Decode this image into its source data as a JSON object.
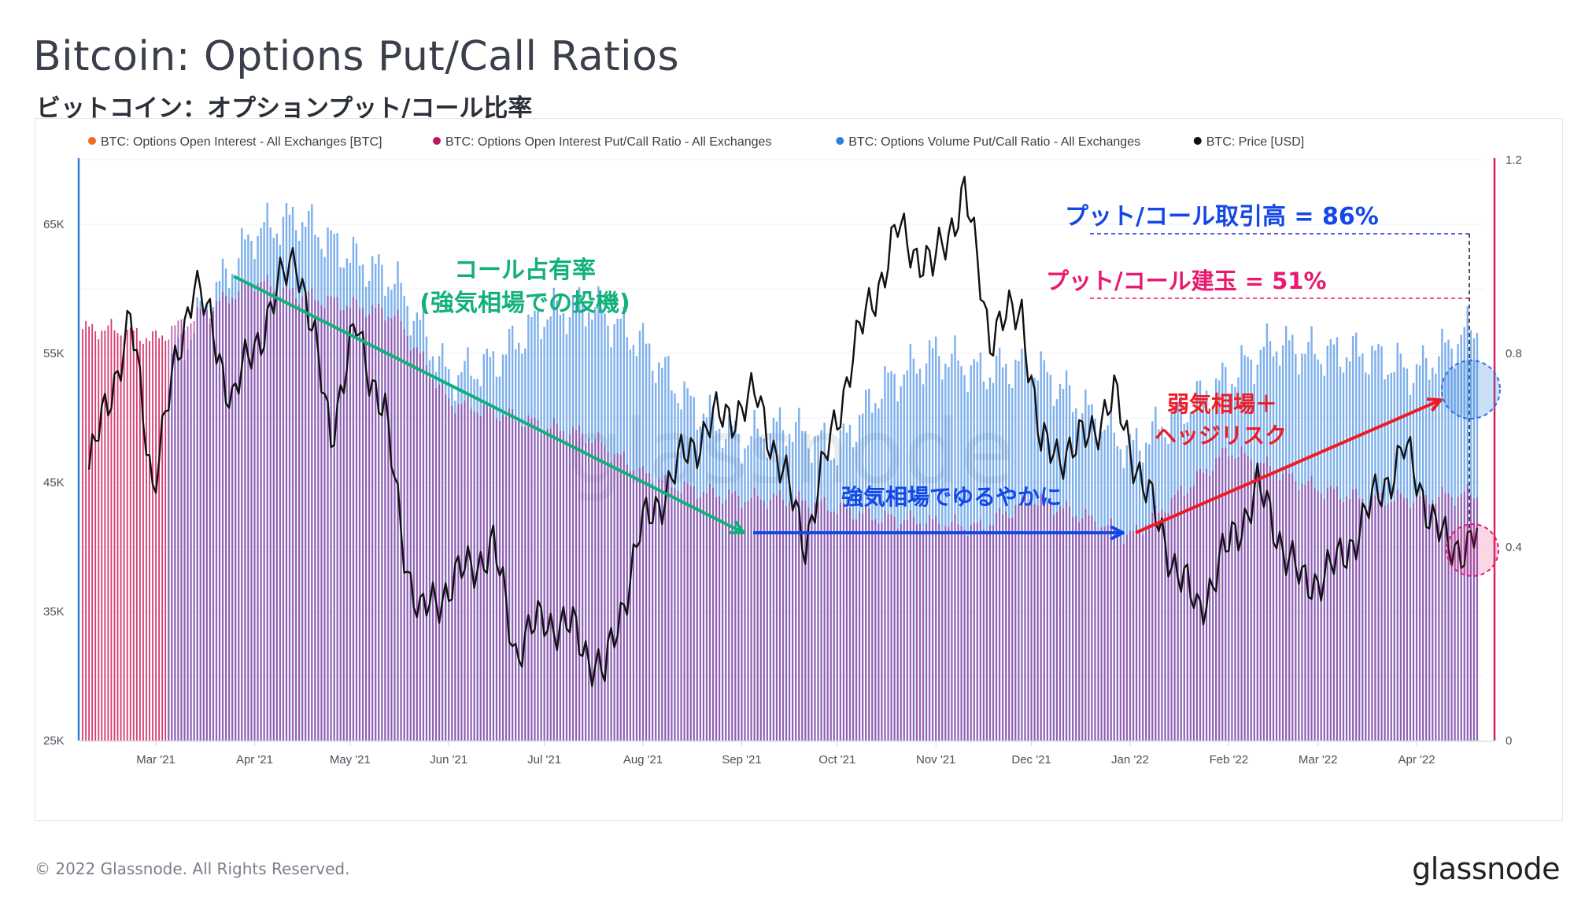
{
  "title": "Bitcoin: Options Put/Call Ratios",
  "subtitle": "ビットコイン：オプションプット/コール比率",
  "footer": {
    "copyright": "© 2022 Glassnode. All Rights Reserved.",
    "logo": "glassnode"
  },
  "watermark": "glassnode",
  "colors": {
    "oi_btc": "#f36b21",
    "oi_ratio": "#c2185b",
    "vol_ratio": "#2f7fe0",
    "price": "#111111",
    "green": "#12b07a",
    "blue": "#1448e6",
    "red": "#ee1c24",
    "pink": "#e8196e"
  },
  "legend": [
    {
      "label": "BTC: Options Open Interest - All Exchanges [BTC]",
      "color": "#f36b21",
      "muted": true
    },
    {
      "label": "BTC: Options Open Interest Put/Call Ratio - All Exchanges",
      "color": "#c2185b",
      "muted": false
    },
    {
      "label": "BTC: Options Volume Put/Call Ratio - All Exchanges",
      "color": "#2f7fe0",
      "muted": false
    },
    {
      "label": "BTC: Price [USD]",
      "color": "#111111",
      "muted": false
    }
  ],
  "annotations": {
    "green_l1": "コール占有率",
    "green_l2": "(強気相場での投機)",
    "blue_mid": "強気相場でゆるやかに",
    "red_l1": "弱気相場＋",
    "red_l2": "ヘッジリスク",
    "vol_label": "プット/コール取引高 = 86%",
    "oi_label": "プット/コール建玉 = 51%"
  },
  "chart_data": {
    "type": "bar",
    "x_range": [
      "2021-02-05",
      "2022-04-22"
    ],
    "x_ticks": [
      "Mar '21",
      "Apr '21",
      "May '21",
      "Jun '21",
      "Jul '21",
      "Aug '21",
      "Sep '21",
      "Oct '21",
      "Nov '21",
      "Dec '21",
      "Jan '22",
      "Feb '22",
      "Mar '22",
      "Apr '22"
    ],
    "y_left": {
      "ticks": [
        "25K",
        "35K",
        "45K",
        "55K",
        "65K"
      ],
      "range": [
        25000,
        70000
      ]
    },
    "y_right": {
      "ticks": [
        "0",
        "0.4",
        "0.8",
        "1.2"
      ],
      "range": [
        0,
        1.2
      ]
    },
    "series": [
      {
        "name": "BTC: Options Volume Put/Call Ratio - All Exchanges",
        "axis": "right",
        "type": "bar",
        "x": [
          "2021-02-15",
          "2021-03-01",
          "2021-03-15",
          "2021-04-01",
          "2021-04-15",
          "2021-05-01",
          "2021-05-15",
          "2021-06-01",
          "2021-06-15",
          "2021-07-01",
          "2021-07-15",
          "2021-08-01",
          "2021-08-15",
          "2021-09-01",
          "2021-09-15",
          "2021-10-01",
          "2021-10-15",
          "2021-11-01",
          "2021-11-15",
          "2021-12-01",
          "2021-12-15",
          "2022-01-01",
          "2022-01-15",
          "2022-02-01",
          "2022-02-15",
          "2022-03-01",
          "2022-03-15",
          "2022-04-01",
          "2022-04-20"
        ],
        "values": [
          0.55,
          0.72,
          0.88,
          1.05,
          1.08,
          1.0,
          0.95,
          0.75,
          0.78,
          0.88,
          0.9,
          0.82,
          0.7,
          0.62,
          0.65,
          0.6,
          0.73,
          0.8,
          0.76,
          0.78,
          0.7,
          0.6,
          0.67,
          0.75,
          0.82,
          0.8,
          0.8,
          0.76,
          0.86
        ]
      },
      {
        "name": "BTC: Options Open Interest Put/Call Ratio - All Exchanges",
        "axis": "right",
        "type": "bar",
        "x": [
          "2021-02-15",
          "2021-03-01",
          "2021-03-15",
          "2021-04-01",
          "2021-04-15",
          "2021-05-01",
          "2021-05-15",
          "2021-06-01",
          "2021-06-15",
          "2021-07-01",
          "2021-07-15",
          "2021-08-01",
          "2021-08-15",
          "2021-09-01",
          "2021-09-15",
          "2021-10-01",
          "2021-10-15",
          "2021-11-01",
          "2021-11-15",
          "2021-12-01",
          "2021-12-15",
          "2022-01-01",
          "2022-01-15",
          "2022-02-01",
          "2022-02-15",
          "2022-03-01",
          "2022-03-15",
          "2022-04-01",
          "2022-04-20"
        ],
        "values": [
          0.85,
          0.83,
          0.88,
          0.95,
          0.92,
          0.9,
          0.88,
          0.7,
          0.68,
          0.65,
          0.63,
          0.55,
          0.52,
          0.5,
          0.5,
          0.48,
          0.46,
          0.45,
          0.44,
          0.5,
          0.47,
          0.42,
          0.5,
          0.6,
          0.56,
          0.52,
          0.5,
          0.5,
          0.51
        ]
      },
      {
        "name": "BTC: Price [USD]",
        "axis": "left",
        "type": "line",
        "x": [
          "2021-02-08",
          "2021-02-21",
          "2021-02-28",
          "2021-03-13",
          "2021-03-25",
          "2021-04-14",
          "2021-04-25",
          "2021-05-03",
          "2021-05-12",
          "2021-05-19",
          "2021-05-23",
          "2021-06-01",
          "2021-06-15",
          "2021-06-22",
          "2021-07-01",
          "2021-07-10",
          "2021-07-20",
          "2021-07-31",
          "2021-08-14",
          "2021-08-22",
          "2021-09-06",
          "2021-09-21",
          "2021-10-06",
          "2021-10-20",
          "2021-10-31",
          "2021-11-10",
          "2021-11-18",
          "2021-11-28",
          "2021-12-04",
          "2021-12-15",
          "2021-12-27",
          "2022-01-10",
          "2022-01-22",
          "2022-02-10",
          "2022-02-24",
          "2022-03-07",
          "2022-03-28",
          "2022-04-11",
          "2022-04-20"
        ],
        "values": [
          46000,
          57500,
          45000,
          61000,
          51500,
          63000,
          49000,
          57000,
          50000,
          38500,
          34500,
          37000,
          40000,
          32000,
          34500,
          33500,
          30000,
          41000,
          47000,
          49500,
          51500,
          40500,
          55000,
          64500,
          61500,
          67500,
          56500,
          58500,
          47500,
          47500,
          51500,
          41500,
          35000,
          44500,
          37000,
          38500,
          47500,
          39500,
          41000
        ]
      }
    ]
  }
}
